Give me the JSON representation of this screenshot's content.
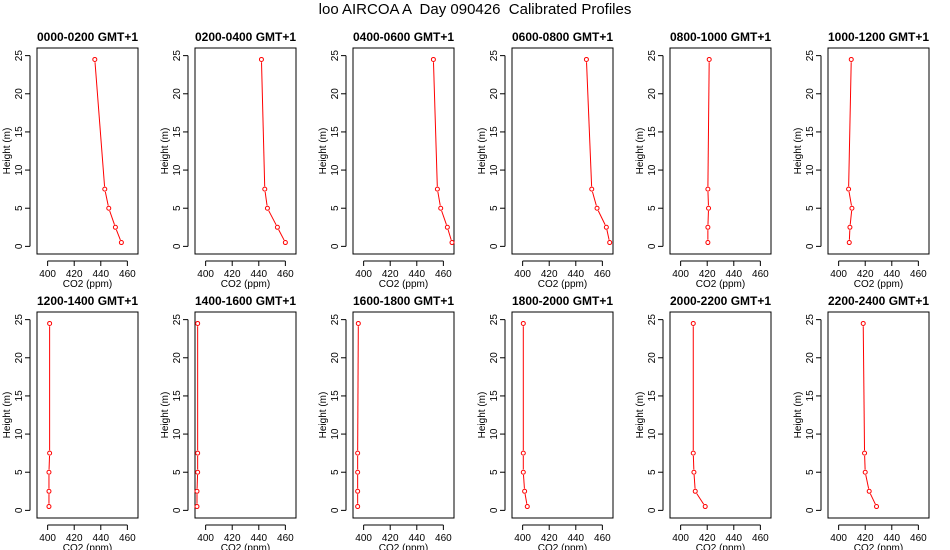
{
  "figure_title": "loo AIRCOA A  Day 090426  Calibrated Profiles",
  "colors": {
    "profile_line": "#ff0000",
    "axis": "#000000",
    "background": "#ffffff"
  },
  "chart_data": [
    {
      "type": "line",
      "title": "0000-0200 GMT+1",
      "xlabel": "CO2 (ppm)",
      "ylabel": "Height (m)",
      "xlim": [
        392,
        468
      ],
      "ylim": [
        -1,
        26
      ],
      "xticks": [
        400,
        420,
        440,
        460
      ],
      "yticks": [
        0,
        5,
        10,
        15,
        20,
        25
      ],
      "x": [
        455.5,
        451,
        446,
        443,
        435.5
      ],
      "y": [
        0.5,
        2.5,
        5,
        7.5,
        24.5
      ]
    },
    {
      "type": "line",
      "title": "0200-0400 GMT+1",
      "xlabel": "CO2 (ppm)",
      "ylabel": "Height (m)",
      "xlim": [
        392,
        468
      ],
      "ylim": [
        -1,
        26
      ],
      "xticks": [
        400,
        420,
        440,
        460
      ],
      "yticks": [
        0,
        5,
        10,
        15,
        20,
        25
      ],
      "x": [
        460,
        454,
        446.5,
        444.5,
        442
      ],
      "y": [
        0.5,
        2.5,
        5,
        7.5,
        24.5
      ]
    },
    {
      "type": "line",
      "title": "0400-0600 GMT+1",
      "xlabel": "CO2 (ppm)",
      "ylabel": "Height (m)",
      "xlim": [
        392,
        468
      ],
      "ylim": [
        -1,
        26
      ],
      "xticks": [
        400,
        420,
        440,
        460
      ],
      "yticks": [
        0,
        5,
        10,
        15,
        20,
        25
      ],
      "x": [
        466.5,
        463,
        458,
        455.5,
        452.5
      ],
      "y": [
        0.5,
        2.5,
        5,
        7.5,
        24.5
      ]
    },
    {
      "type": "line",
      "title": "0600-0800 GMT+1",
      "xlabel": "CO2 (ppm)",
      "ylabel": "Height (m)",
      "xlim": [
        392,
        468
      ],
      "ylim": [
        -1,
        26
      ],
      "xticks": [
        400,
        420,
        440,
        460
      ],
      "yticks": [
        0,
        5,
        10,
        15,
        20,
        25
      ],
      "x": [
        465.5,
        463,
        456,
        452,
        448
      ],
      "y": [
        0.5,
        2.5,
        5,
        7.5,
        24.5
      ]
    },
    {
      "type": "line",
      "title": "0800-1000 GMT+1",
      "xlabel": "CO2 (ppm)",
      "ylabel": "Height (m)",
      "xlim": [
        392,
        468
      ],
      "ylim": [
        -1,
        26
      ],
      "xticks": [
        400,
        420,
        440,
        460
      ],
      "yticks": [
        0,
        5,
        10,
        15,
        20,
        25
      ],
      "x": [
        420.5,
        420.5,
        421,
        420.5,
        421.5
      ],
      "y": [
        0.5,
        2.5,
        5,
        7.5,
        24.5
      ]
    },
    {
      "type": "line",
      "title": "1000-1200 GMT+1",
      "xlabel": "CO2 (ppm)",
      "ylabel": "Height (m)",
      "xlim": [
        392,
        468
      ],
      "ylim": [
        -1,
        26
      ],
      "xticks": [
        400,
        420,
        440,
        460
      ],
      "yticks": [
        0,
        5,
        10,
        15,
        20,
        25
      ],
      "x": [
        408,
        408.5,
        410,
        407.5,
        409.5
      ],
      "y": [
        0.5,
        2.5,
        5,
        7.5,
        24.5
      ]
    },
    {
      "type": "line",
      "title": "1200-1400 GMT+1",
      "xlabel": "CO2 (ppm)",
      "ylabel": "Height (m)",
      "xlim": [
        392,
        468
      ],
      "ylim": [
        -1,
        26
      ],
      "xticks": [
        400,
        420,
        440,
        460
      ],
      "yticks": [
        0,
        5,
        10,
        15,
        20,
        25
      ],
      "x": [
        401,
        401,
        401,
        401.5,
        401.5
      ],
      "y": [
        0.5,
        2.5,
        5,
        7.5,
        24.5
      ]
    },
    {
      "type": "line",
      "title": "1400-1600 GMT+1",
      "xlabel": "CO2 (ppm)",
      "ylabel": "Height (m)",
      "xlim": [
        392,
        468
      ],
      "ylim": [
        -1,
        26
      ],
      "xticks": [
        400,
        420,
        440,
        460
      ],
      "yticks": [
        0,
        5,
        10,
        15,
        20,
        25
      ],
      "x": [
        393.5,
        393.5,
        394,
        394,
        394
      ],
      "y": [
        0.5,
        2.5,
        5,
        7.5,
        24.5
      ]
    },
    {
      "type": "line",
      "title": "1600-1800 GMT+1",
      "xlabel": "CO2 (ppm)",
      "ylabel": "Height (m)",
      "xlim": [
        392,
        468
      ],
      "ylim": [
        -1,
        26
      ],
      "xticks": [
        400,
        420,
        440,
        460
      ],
      "yticks": [
        0,
        5,
        10,
        15,
        20,
        25
      ],
      "x": [
        395.5,
        395.5,
        395.5,
        395.5,
        396
      ],
      "y": [
        0.5,
        2.5,
        5,
        7.5,
        24.5
      ]
    },
    {
      "type": "line",
      "title": "1800-2000 GMT+1",
      "xlabel": "CO2 (ppm)",
      "ylabel": "Height (m)",
      "xlim": [
        392,
        468
      ],
      "ylim": [
        -1,
        26
      ],
      "xticks": [
        400,
        420,
        440,
        460
      ],
      "yticks": [
        0,
        5,
        10,
        15,
        20,
        25
      ],
      "x": [
        403.5,
        401.5,
        400.5,
        400.5,
        400.5
      ],
      "y": [
        0.5,
        2.5,
        5,
        7.5,
        24.5
      ]
    },
    {
      "type": "line",
      "title": "2000-2200 GMT+1",
      "xlabel": "CO2 (ppm)",
      "ylabel": "Height (m)",
      "xlim": [
        392,
        468
      ],
      "ylim": [
        -1,
        26
      ],
      "xticks": [
        400,
        420,
        440,
        460
      ],
      "yticks": [
        0,
        5,
        10,
        15,
        20,
        25
      ],
      "x": [
        418.5,
        411,
        410,
        409.5,
        409.5
      ],
      "y": [
        0.5,
        2.5,
        5,
        7.5,
        24.5
      ]
    },
    {
      "type": "line",
      "title": "2200-2400 GMT+1",
      "xlabel": "CO2 (ppm)",
      "ylabel": "Height (m)",
      "xlim": [
        392,
        468
      ],
      "ylim": [
        -1,
        26
      ],
      "xticks": [
        400,
        420,
        440,
        460
      ],
      "yticks": [
        0,
        5,
        10,
        15,
        20,
        25
      ],
      "x": [
        428.5,
        423,
        420,
        419.5,
        418.5
      ],
      "y": [
        0.5,
        2.5,
        5,
        7.5,
        24.5
      ]
    }
  ]
}
